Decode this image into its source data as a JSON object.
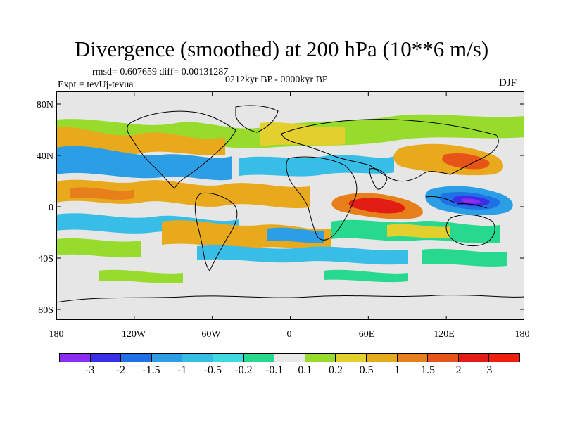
{
  "figure": {
    "title": "Divergence (smoothed) at 200 hPa (10**6 m/s)",
    "stats": "rmsd= 0.607659 diff= 0.00131287",
    "period": "0212kyr BP - 0000kyr BP",
    "experiment": "Expt = tevUj-tevua",
    "season": "DJF"
  },
  "axes": {
    "y_ticks": [
      "80N",
      "40N",
      "0",
      "40S",
      "80S"
    ],
    "x_ticks": [
      "180",
      "120W",
      "60W",
      "0",
      "60E",
      "120E",
      "180"
    ]
  },
  "colorbar": {
    "levels": [
      "-3",
      "-2",
      "-1.5",
      "-1",
      "-0.5",
      "-0.2",
      "-0.1",
      "0.1",
      "0.2",
      "0.5",
      "1",
      "1.5",
      "2",
      "3"
    ],
    "colors": [
      "#8d2cf2",
      "#3b2fe6",
      "#1e72e6",
      "#2c9ee6",
      "#37bde6",
      "#3fd9e4",
      "#27d98f",
      "#e8e8e8",
      "#97dc2c",
      "#e3d02f",
      "#e9a91c",
      "#e7801a",
      "#e75418",
      "#e21e14",
      "#f01e0c"
    ]
  }
}
